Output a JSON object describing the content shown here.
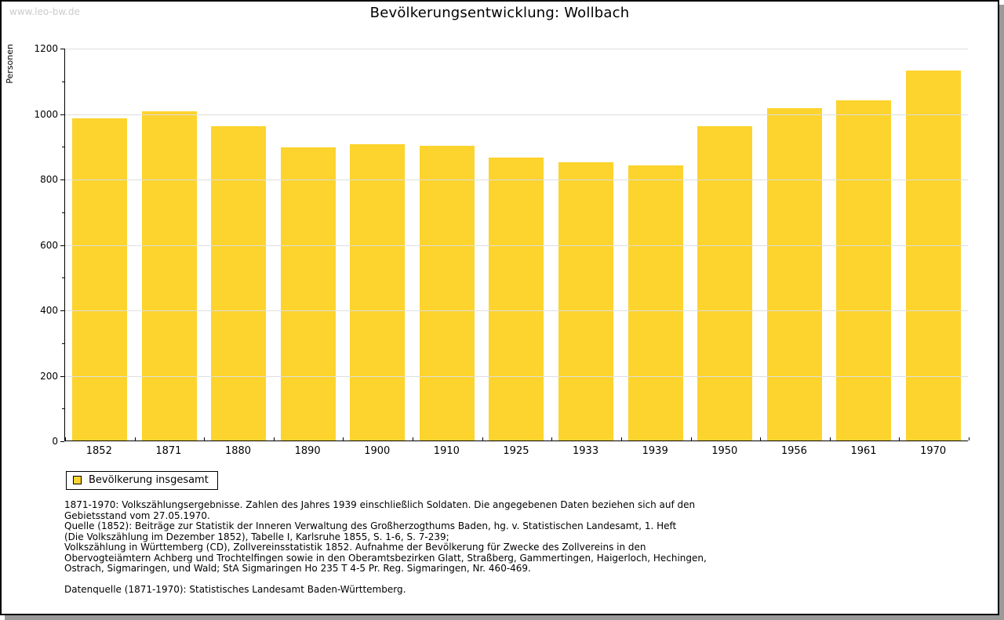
{
  "watermark": "www.leo-bw.de",
  "title": "Bevölkerungsentwicklung: Wollbach",
  "chart_data": {
    "type": "bar",
    "title": "Bevölkerungsentwicklung: Wollbach",
    "xlabel": "",
    "ylabel": "Personen",
    "ylim": [
      0,
      1200
    ],
    "ytick_step": 200,
    "yminor_step": 100,
    "grid": true,
    "legend_position": "bottom-left",
    "categories": [
      "1852",
      "1871",
      "1880",
      "1890",
      "1900",
      "1910",
      "1925",
      "1933",
      "1939",
      "1950",
      "1956",
      "1961",
      "1970"
    ],
    "series": [
      {
        "name": "Bevölkerung insgesamt",
        "color": "#fdd32d",
        "values": [
          985,
          1005,
          960,
          895,
          905,
          900,
          865,
          850,
          840,
          960,
          1015,
          1040,
          1130
        ]
      }
    ]
  },
  "legend": {
    "label": "Bevölkerung insgesamt",
    "swatch_color": "#fdd32d"
  },
  "footnotes": [
    "1871-1970: Volkszählungsergebnisse. Zahlen des Jahres 1939 einschließlich Soldaten. Die angegebenen Daten beziehen sich auf den",
    "Gebietsstand vom 27.05.1970.",
    "Quelle (1852): Beiträge zur Statistik der Inneren Verwaltung des Großherzogthums Baden, hg. v. Statistischen Landesamt, 1. Heft",
    "(Die Volkszählung im Dezember 1852), Tabelle I, Karlsruhe 1855, S. 1-6, S. 7-239;",
    "Volkszählung in Württemberg (CD), Zollvereinsstatistik 1852. Aufnahme der Bevölkerung für Zwecke des Zollvereins in den",
    "Obervogteiämtern Achberg und Trochtelfingen sowie in den Oberamtsbezirken Glatt, Straßberg, Gammertingen, Haigerloch, Hechingen,",
    "Ostrach, Sigmaringen, und Wald; StA Sigmaringen Ho 235 T 4-5 Pr. Reg. Sigmaringen, Nr. 460-469."
  ],
  "datasource": "Datenquelle (1871-1970): Statistisches Landesamt Baden-Württemberg.",
  "colors": {
    "bar": "#fdd32d",
    "grid": "#dedede",
    "axis": "#000000",
    "watermark": "#cbcbcb",
    "frame_shadow": "#9a9a9a"
  }
}
